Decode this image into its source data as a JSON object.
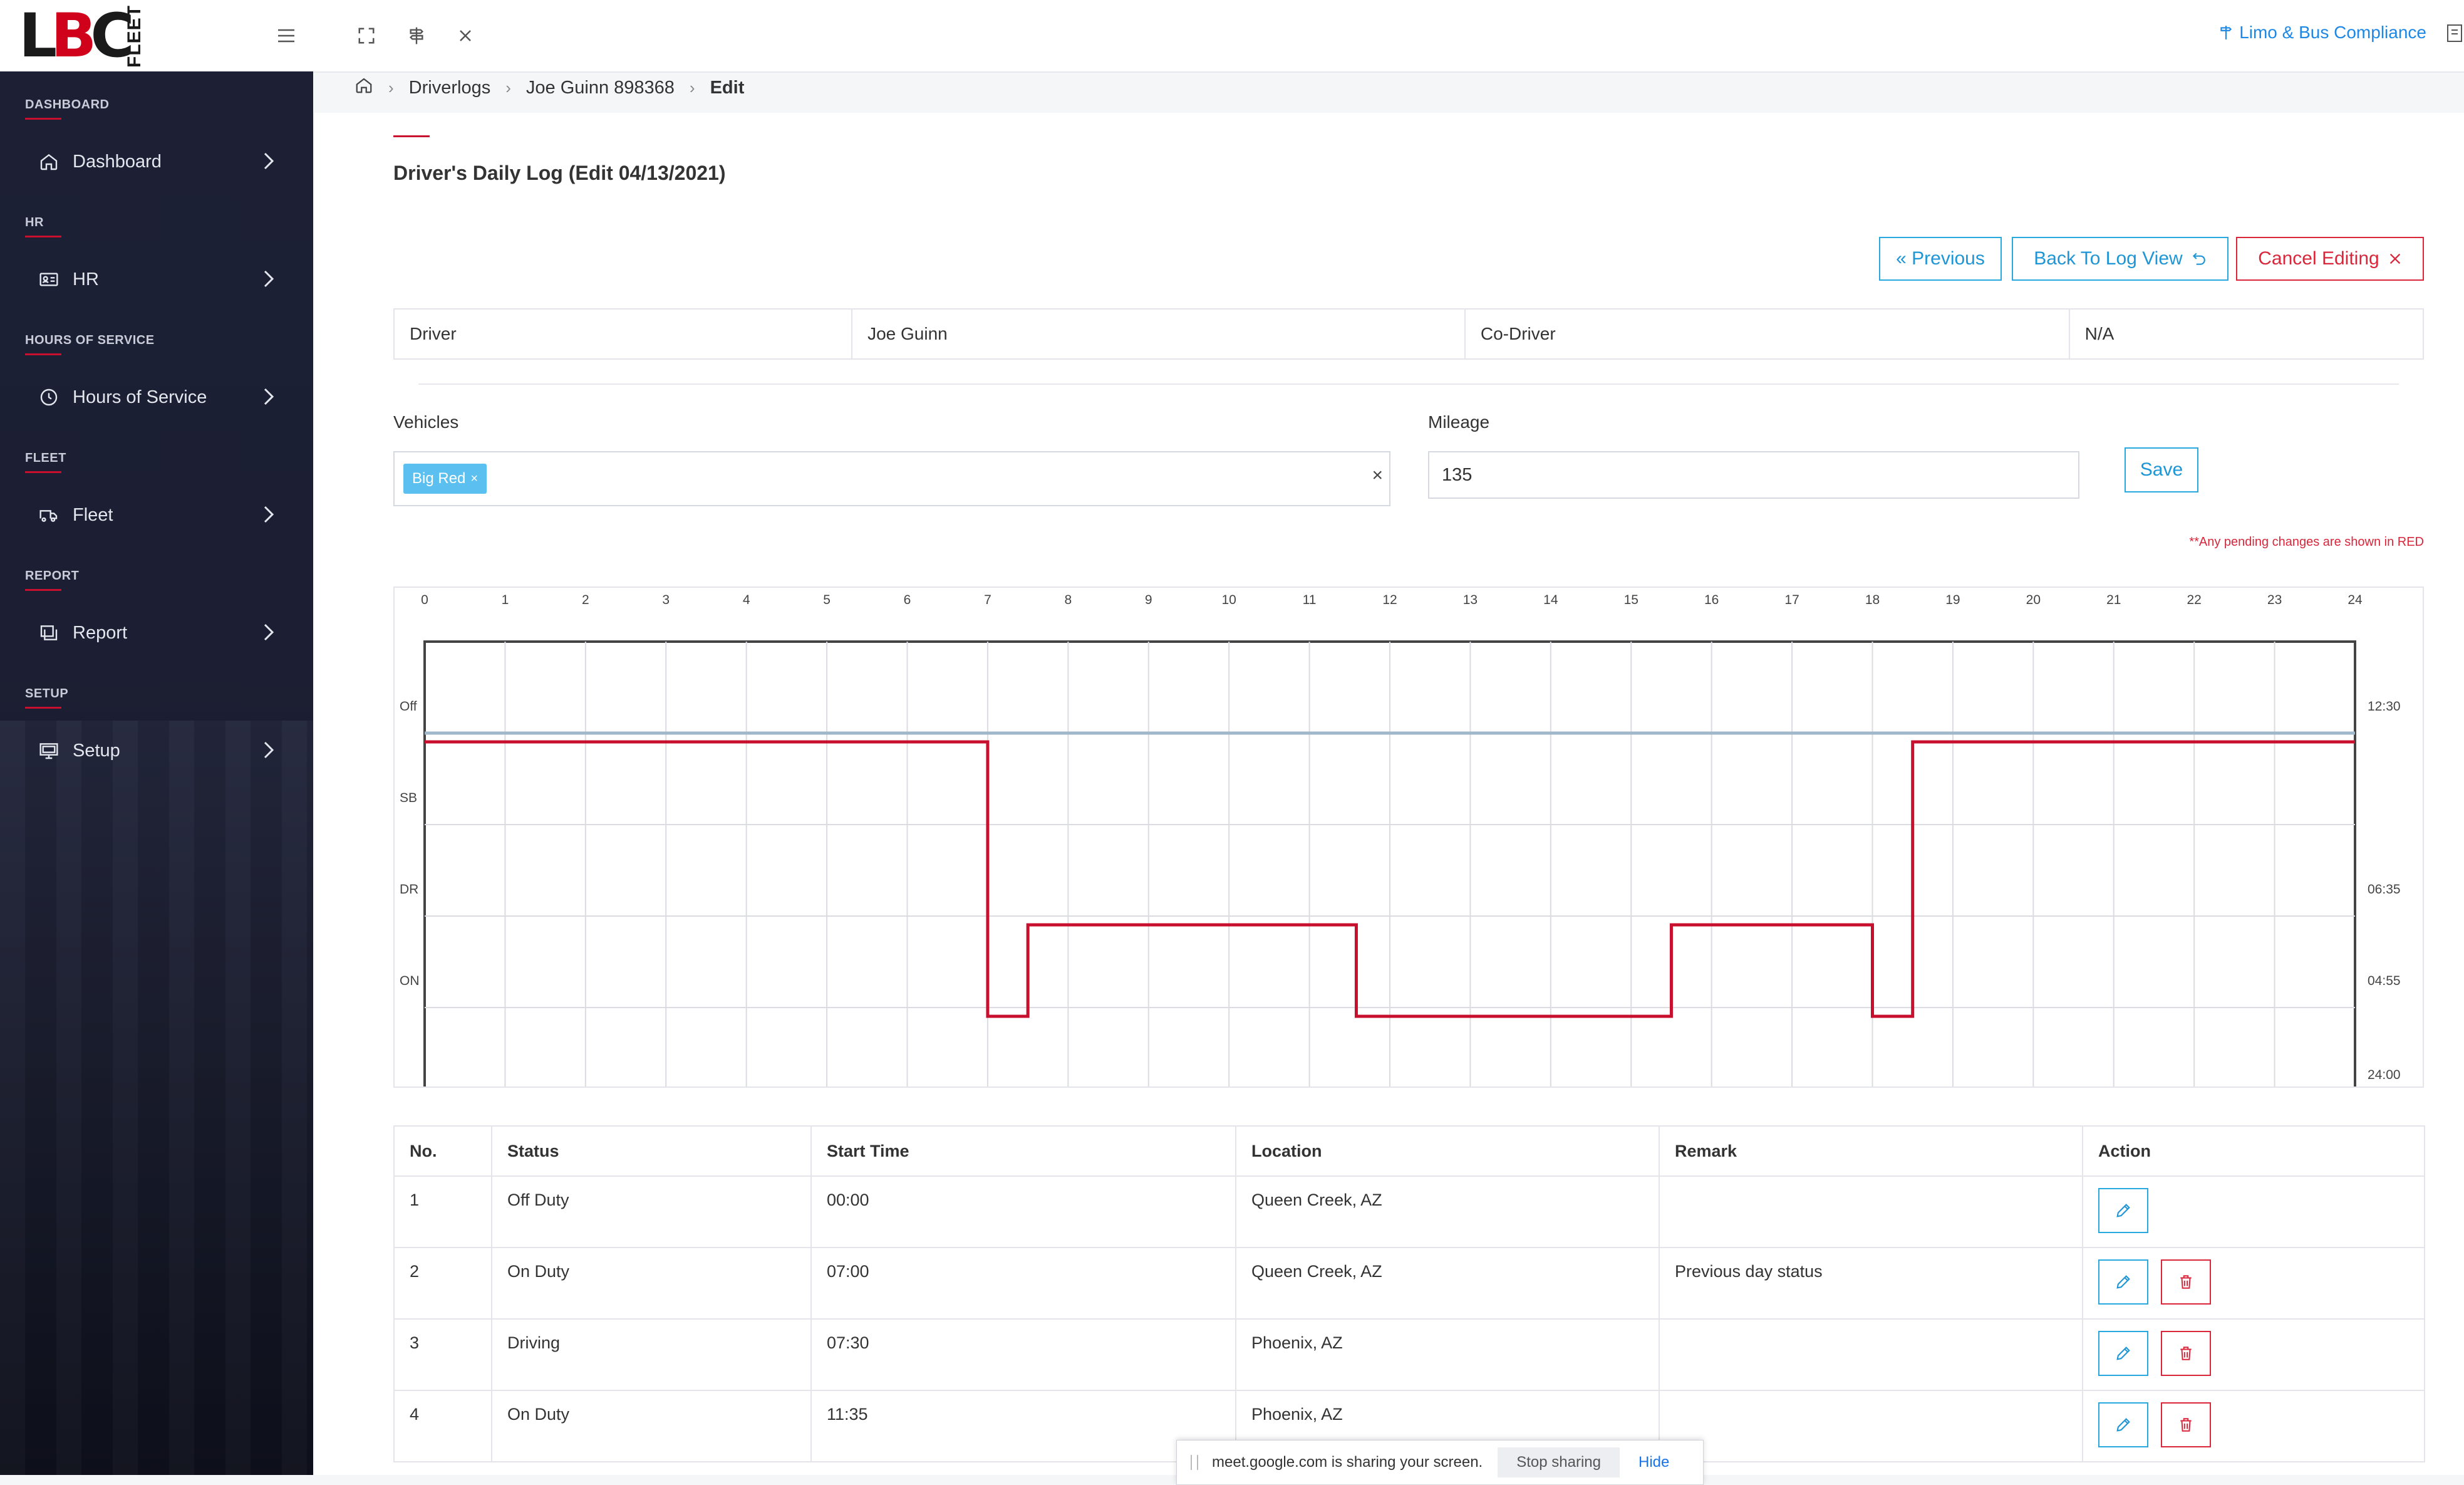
{
  "brand": {
    "logo_text": "LBC",
    "logo_sub": "FLEET",
    "title_link": "Limo & Bus Compliance"
  },
  "sidebar": {
    "sections": [
      {
        "label": "DASHBOARD",
        "item": "Dashboard"
      },
      {
        "label": "HR",
        "item": "HR"
      },
      {
        "label": "HOURS OF SERVICE",
        "item": "Hours of Service"
      },
      {
        "label": "FLEET",
        "item": "Fleet"
      },
      {
        "label": "REPORT",
        "item": "Report"
      },
      {
        "label": "SETUP",
        "item": "Setup"
      }
    ]
  },
  "breadcrumb": {
    "items": [
      "Driverlogs",
      "Joe Guinn 898368"
    ],
    "current": "Edit"
  },
  "page": {
    "title": "Driver's Daily Log (Edit 04/13/2021)",
    "buttons": {
      "previous": "« Previous",
      "back": "Back To Log View",
      "cancel": "Cancel Editing"
    }
  },
  "info": {
    "driver_label": "Driver",
    "driver": "Joe Guinn",
    "codriver_label": "Co-Driver",
    "codriver": "N/A"
  },
  "form": {
    "vehicles_label": "Vehicles",
    "vehicle_chip": "Big Red",
    "mileage_label": "Mileage",
    "mileage": "135",
    "save": "Save",
    "pending_note": "**Any pending changes are shown in RED"
  },
  "chart_data": {
    "type": "line",
    "x_ticks": [
      "0",
      "1",
      "2",
      "3",
      "4",
      "5",
      "6",
      "7",
      "8",
      "9",
      "10",
      "11",
      "12",
      "13",
      "14",
      "15",
      "16",
      "17",
      "18",
      "19",
      "20",
      "21",
      "22",
      "23",
      "24"
    ],
    "y_categories": [
      "Off",
      "SB",
      "DR",
      "ON"
    ],
    "right_totals": {
      "Off": "12:30",
      "SB": "",
      "DR": "06:35",
      "ON": "04:55",
      "total": "24:00"
    },
    "xlim": [
      0,
      24
    ],
    "grid": true,
    "series": [
      {
        "color": "#c8102e",
        "points": [
          [
            0,
            "Off"
          ],
          [
            7,
            "Off"
          ],
          [
            7,
            "ON"
          ],
          [
            7.5,
            "ON"
          ],
          [
            7.5,
            "DR"
          ],
          [
            11.583,
            "DR"
          ],
          [
            11.583,
            "ON"
          ],
          [
            15.5,
            "ON"
          ],
          [
            15.5,
            "DR"
          ],
          [
            18,
            "DR"
          ],
          [
            18,
            "ON"
          ],
          [
            18.5,
            "ON"
          ],
          [
            18.5,
            "Off"
          ],
          [
            24,
            "Off"
          ]
        ]
      }
    ],
    "reference_line": {
      "status": "Off",
      "color": "#9fb7c9"
    }
  },
  "log_table": {
    "headers": [
      "No.",
      "Status",
      "Start Time",
      "Location",
      "Remark",
      "Action"
    ],
    "rows": [
      {
        "no": "1",
        "status": "Off Duty",
        "start": "00:00",
        "location": "Queen Creek, AZ",
        "remark": ""
      },
      {
        "no": "2",
        "status": "On Duty",
        "start": "07:00",
        "location": "Queen Creek, AZ",
        "remark": "Previous day status"
      },
      {
        "no": "3",
        "status": "Driving",
        "start": "07:30",
        "location": "Phoenix, AZ",
        "remark": ""
      },
      {
        "no": "4",
        "status": "On Duty",
        "start": "11:35",
        "location": "Phoenix, AZ",
        "remark": ""
      }
    ]
  },
  "sharebar": {
    "message": "meet.google.com is sharing your screen.",
    "stop": "Stop sharing",
    "hide": "Hide"
  }
}
